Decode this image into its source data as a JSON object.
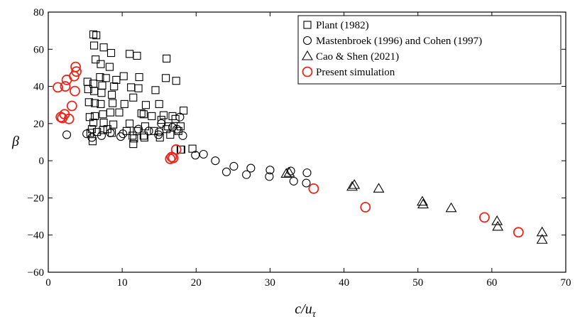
{
  "chart_data": {
    "type": "scatter",
    "title": "",
    "xlabel": "c/u",
    "xlabel_sub": "τ",
    "ylabel": "β",
    "xlim": [
      0,
      70
    ],
    "ylim": [
      -60,
      80
    ],
    "xticks": [
      "0",
      "10",
      "20",
      "30",
      "40",
      "50",
      "60",
      "70"
    ],
    "yticks": [
      "−60",
      "−40",
      "−20",
      "0",
      "20",
      "40",
      "60",
      "80"
    ],
    "grid": false,
    "legend_position": "top-right",
    "series": [
      {
        "name": "Plant (1982)",
        "marker": "square",
        "color": "#000000",
        "x": [
          6.1,
          6.5,
          6.2,
          7.5,
          8.5,
          11.0,
          12.0,
          16.0,
          6.4,
          7.1,
          8.3,
          10.2,
          7.0,
          7.8,
          9.2,
          12.3,
          15.9,
          17.3,
          5.3,
          6.1,
          7.3,
          8.9,
          11.2,
          12.2,
          14.5,
          5.4,
          6.2,
          7.2,
          8.6,
          11.5,
          13.2,
          15.0,
          5.5,
          6.3,
          7.1,
          8.7,
          10.3,
          12.9,
          14.0,
          15.6,
          16.8,
          18.3,
          5.6,
          6.3,
          7.4,
          8.4,
          9.6,
          12.6,
          15.3,
          17.2,
          6.1,
          7.5,
          8.8,
          11.0,
          13.1,
          16.2,
          17.9,
          5.9,
          7.4,
          8.0,
          10.6,
          12.0,
          14.3,
          16.0,
          17.6,
          5.7,
          6.6,
          8.6,
          11.4,
          13.0,
          15.1,
          16.5,
          18.0,
          6.0,
          12.9,
          11.6,
          17.9,
          11.5,
          19.5
        ],
        "y": [
          68,
          67.5,
          62,
          61,
          58,
          57.5,
          56.5,
          55,
          54.5,
          52,
          50.5,
          45.5,
          45,
          44.5,
          43.5,
          45,
          44.5,
          43,
          42.5,
          41.5,
          40.5,
          40,
          39.5,
          39,
          38,
          38.5,
          37.5,
          36.5,
          35.5,
          34,
          30,
          30.5,
          31.5,
          31,
          30.5,
          31,
          30.5,
          25,
          24,
          24.5,
          24,
          27,
          23.5,
          24,
          25,
          26,
          26,
          25.5,
          22,
          22.5,
          20.5,
          20.5,
          19.5,
          20,
          18.5,
          18.5,
          18.5,
          17,
          16.5,
          17,
          16,
          16,
          16,
          17,
          16,
          15,
          15.5,
          15,
          13.5,
          12.5,
          12.5,
          14,
          6,
          10.5,
          13.5,
          12,
          6,
          9,
          6.5
        ]
      },
      {
        "name": "Mastenbroek (1996) and Cohen (1997)",
        "marker": "circle",
        "color": "#000000",
        "x": [
          2.5,
          5.2,
          7.2,
          9.8,
          12.2,
          13.6,
          15.3,
          17.4,
          18.2,
          19.9,
          21.0,
          22.6,
          24.1,
          25.1,
          26.8,
          27.4,
          29.9,
          30.0,
          32.8,
          33.2,
          34.9,
          35.0,
          5.9,
          8.4,
          10.1,
          14.9,
          15.0,
          17.8,
          16.8
        ],
        "y": [
          14,
          14.5,
          13.5,
          13,
          17,
          16,
          20,
          17,
          13.5,
          3,
          3.5,
          0,
          -6,
          -3,
          -7.5,
          -4,
          -8.5,
          -5,
          -5.5,
          -11,
          -12,
          -6.5,
          12.5,
          15,
          14.5,
          14,
          15.5,
          23.5,
          18
        ]
      },
      {
        "name": "Cao & Shen (2021)",
        "marker": "triangle",
        "color": "#000000",
        "x": [
          32.2,
          32.6,
          41.1,
          41.4,
          44.7,
          50.6,
          50.7,
          54.5,
          60.7,
          60.8,
          66.8,
          66.8
        ],
        "y": [
          -7,
          -6.5,
          -14,
          -13,
          -15,
          -22,
          -23.5,
          -25.5,
          -32.5,
          -35.5,
          -38.5,
          -42.5
        ]
      },
      {
        "name": "Present simulation",
        "marker": "circle",
        "color": "#e8261c",
        "x": [
          1.3,
          2.3,
          3.6,
          3.7,
          3.8,
          2.5,
          3.5,
          1.9,
          2.2,
          1.7,
          3.2,
          2.8,
          16.5,
          16.9,
          17.3,
          16.7,
          35.9,
          42.9,
          59.0,
          63.6
        ],
        "y": [
          39.5,
          40,
          37.5,
          50.5,
          48,
          43.5,
          45.5,
          23,
          25,
          23.5,
          29.5,
          22.5,
          1,
          1.5,
          6,
          2,
          -15,
          -25,
          -30.5,
          -38.5
        ]
      }
    ]
  }
}
